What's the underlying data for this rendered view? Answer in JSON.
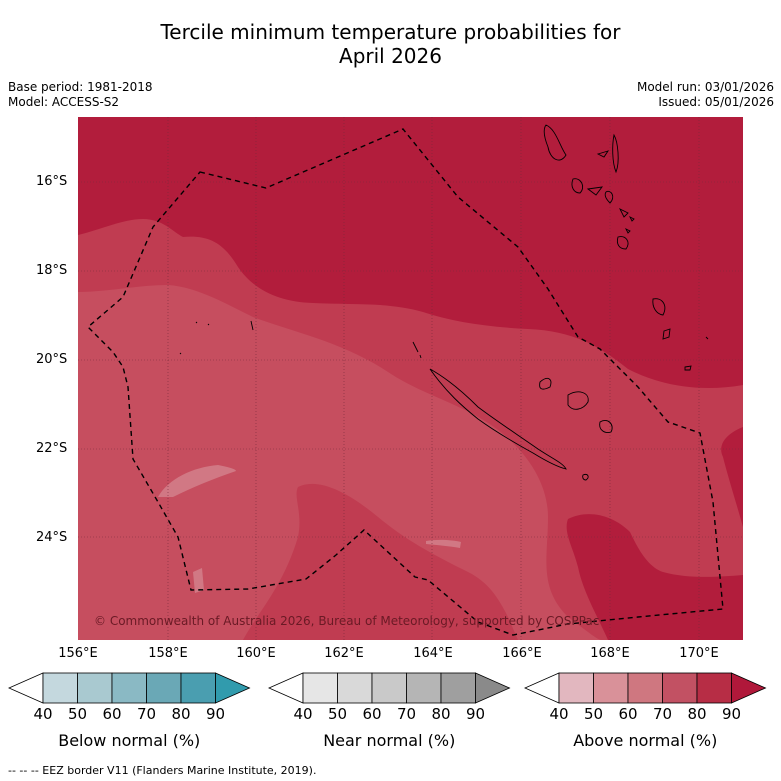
{
  "title": {
    "line1": "Tercile minimum temperature probabilities for",
    "line2": "April 2026"
  },
  "meta": {
    "base_period": "Base period: 1981-2018",
    "model": "Model: ACCESS-S2",
    "model_run": "Model run: 03/01/2026",
    "issued": "Issued: 05/01/2026"
  },
  "map": {
    "latitude_labels": [
      "16°S",
      "18°S",
      "20°S",
      "22°S",
      "24°S"
    ],
    "longitude_labels": [
      "156°E",
      "158°E",
      "160°E",
      "162°E",
      "164°E",
      "166°E",
      "168°E",
      "170°E"
    ],
    "copyright": "© Commonwealth of Australia 2026, Bureau of Meteorology, supported by COSPPac"
  },
  "colorbars": [
    {
      "name": "below",
      "label": "Below normal (%)",
      "ticks": [
        "40",
        "50",
        "60",
        "70",
        "80",
        "90"
      ],
      "colors": [
        "#ffffff",
        "#c4d8de",
        "#a9c9d0",
        "#8ab9c4",
        "#6aa8b6",
        "#4a9eb0",
        "#319bad"
      ]
    },
    {
      "name": "near",
      "label": "Near normal (%)",
      "ticks": [
        "40",
        "50",
        "60",
        "70",
        "80",
        "90"
      ],
      "colors": [
        "#ffffff",
        "#e6e6e6",
        "#d9d9d9",
        "#c9c9c9",
        "#b5b5b5",
        "#9f9f9f",
        "#8a8a8a"
      ]
    },
    {
      "name": "above",
      "label": "Above normal (%)",
      "ticks": [
        "40",
        "50",
        "60",
        "70",
        "80",
        "90"
      ],
      "colors": [
        "#ffffff",
        "#e2b7bf",
        "#d99199",
        "#cf7780",
        "#c25163",
        "#b72d45",
        "#b0183a"
      ]
    }
  ],
  "footnote": "--  --  -- EEZ border V11 (Flanders Marine Institute, 2019)."
}
